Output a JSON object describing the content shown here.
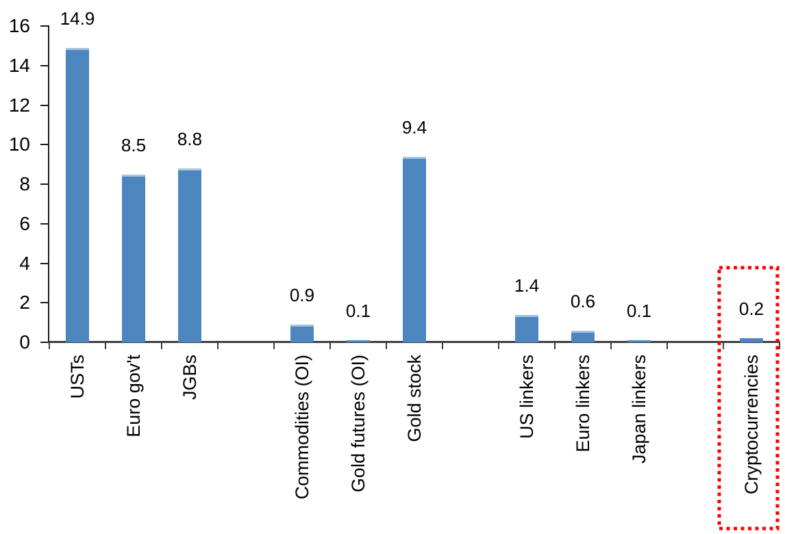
{
  "chart_data": {
    "type": "bar",
    "title": "",
    "xlabel": "",
    "ylabel": "",
    "categories": [
      "USTs",
      "Euro gov't",
      "JGBs",
      "Commodities (OI)",
      "Gold futures (OI)",
      "Gold stock",
      "US linkers",
      "Euro linkers",
      "Japan linkers",
      "Cryptocurrencies"
    ],
    "values": [
      14.9,
      8.5,
      8.8,
      0.9,
      0.1,
      9.4,
      1.4,
      0.6,
      0.1,
      0.2
    ],
    "data_labels": [
      "14.9",
      "8.5",
      "8.8",
      "0.9",
      "0.1",
      "9.4",
      "1.4",
      "0.6",
      "0.1",
      "0.2"
    ],
    "slots": [
      1,
      2,
      3,
      5,
      6,
      7,
      9,
      10,
      11,
      13
    ],
    "total_slots": 13,
    "ylim": [
      0,
      16
    ],
    "yticks": [
      "0",
      "2",
      "4",
      "6",
      "8",
      "10",
      "12",
      "14",
      "16"
    ],
    "grid": false,
    "legend": false,
    "bar_color": "#4d86be",
    "bar_top_edge_color": "#a9c5de",
    "axis_color": "#1a1a1a",
    "label_color": "#000000",
    "highlight_box": {
      "category": "Cryptocurrencies",
      "style": "red-dotted-rectangle",
      "color": "#ff0000"
    }
  }
}
